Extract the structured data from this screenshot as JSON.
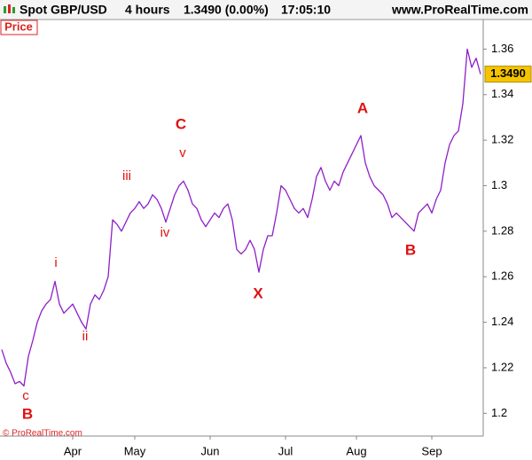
{
  "header": {
    "instrument": "Spot GBP/USD",
    "timeframe": "4 hours",
    "quote": "1.3490 (0.00%)",
    "time": "17:05:10",
    "site": "www.ProRealTime.com"
  },
  "chart_data": {
    "type": "line",
    "title": "Price",
    "categories": [
      null,
      null,
      null,
      null,
      null,
      null,
      null,
      null,
      null,
      null,
      null,
      null,
      null,
      null,
      null,
      null,
      "Apr",
      null,
      null,
      null,
      null,
      null,
      null,
      null,
      null,
      null,
      null,
      null,
      null,
      null,
      "May",
      null,
      null,
      null,
      null,
      null,
      null,
      null,
      null,
      null,
      null,
      null,
      null,
      null,
      null,
      null,
      null,
      "Jun",
      null,
      null,
      null,
      null,
      null,
      null,
      null,
      null,
      null,
      null,
      null,
      null,
      null,
      null,
      null,
      null,
      "Jul",
      null,
      null,
      null,
      null,
      null,
      null,
      null,
      null,
      null,
      null,
      null,
      null,
      null,
      null,
      null,
      "Aug",
      null,
      null,
      null,
      null,
      null,
      null,
      null,
      null,
      null,
      null,
      null,
      null,
      null,
      null,
      null,
      null,
      "Sep",
      null,
      null,
      null,
      null,
      null,
      null,
      null,
      null,
      null,
      null,
      null
    ],
    "series": [
      {
        "name": "Spot GBP/USD",
        "color": "#8e1fc7",
        "values": [
          1.228,
          1.222,
          1.218,
          1.213,
          1.214,
          1.212,
          1.225,
          1.232,
          1.24,
          1.245,
          1.248,
          1.25,
          1.258,
          1.248,
          1.244,
          1.246,
          1.248,
          1.244,
          1.24,
          1.237,
          1.248,
          1.252,
          1.25,
          1.254,
          1.26,
          1.285,
          1.283,
          1.28,
          1.284,
          1.288,
          1.29,
          1.293,
          1.29,
          1.292,
          1.296,
          1.294,
          1.29,
          1.284,
          1.29,
          1.296,
          1.3,
          1.302,
          1.298,
          1.292,
          1.29,
          1.285,
          1.282,
          1.285,
          1.288,
          1.286,
          1.29,
          1.292,
          1.285,
          1.272,
          1.27,
          1.272,
          1.276,
          1.272,
          1.262,
          1.272,
          1.278,
          1.278,
          1.288,
          1.3,
          1.298,
          1.294,
          1.29,
          1.288,
          1.29,
          1.286,
          1.294,
          1.304,
          1.308,
          1.302,
          1.298,
          1.302,
          1.3,
          1.306,
          1.31,
          1.314,
          1.318,
          1.322,
          1.31,
          1.304,
          1.3,
          1.298,
          1.296,
          1.292,
          1.286,
          1.288,
          1.286,
          1.284,
          1.282,
          1.28,
          1.288,
          1.29,
          1.292,
          1.288,
          1.294,
          1.298,
          1.31,
          1.318,
          1.322,
          1.324,
          1.336,
          1.36,
          1.352,
          1.356,
          1.349
        ]
      }
    ],
    "ylim": [
      1.19,
      1.373
    ],
    "yticks": [
      1.2,
      1.22,
      1.24,
      1.26,
      1.28,
      1.3,
      1.32,
      1.34,
      1.36
    ],
    "last_price": {
      "value": 1.349,
      "label": "1.3490"
    },
    "annotations": [
      "c",
      "B",
      "i",
      "ii",
      "iii",
      "iv",
      "v",
      "C",
      "X",
      "A",
      "B"
    ],
    "copyright": "© ProRealTime.com"
  }
}
